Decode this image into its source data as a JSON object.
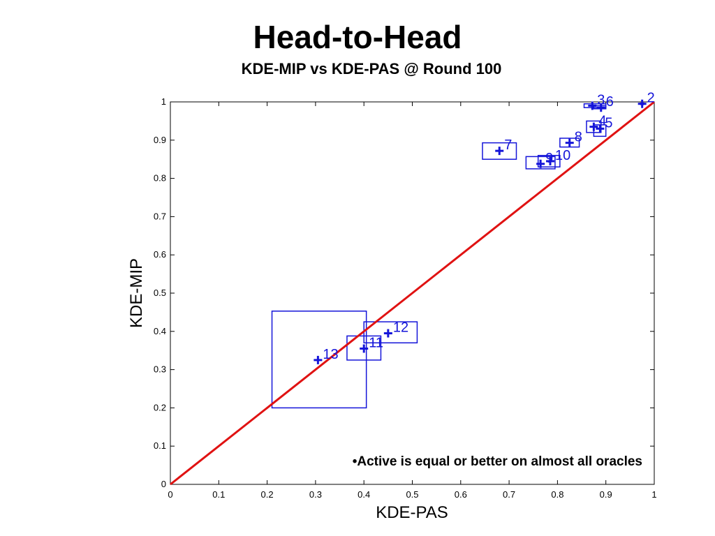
{
  "slide": {
    "title": "Head-to-Head",
    "subtitle": "KDE-MIP vs KDE-PAS @ Round 100",
    "note": "•Active is equal or better on almost all oracles"
  },
  "colors": {
    "series": "#1515d9",
    "diagonal": "#e01212",
    "axis": "#000000"
  },
  "chart_data": {
    "type": "scatter",
    "title": "",
    "xlabel": "KDE-PAS",
    "ylabel": "KDE-MIP",
    "xlim": [
      0,
      1
    ],
    "ylim": [
      0,
      1
    ],
    "xticks": [
      "0",
      "0.1",
      "0.2",
      "0.3",
      "0.4",
      "0.5",
      "0.6",
      "0.7",
      "0.8",
      "0.9",
      "1"
    ],
    "yticks": [
      "0",
      "0.1",
      "0.2",
      "0.3",
      "0.4",
      "0.5",
      "0.6",
      "0.7",
      "0.8",
      "0.9",
      "1"
    ],
    "grid": false,
    "reference_line": {
      "from": [
        0,
        0
      ],
      "to": [
        1,
        1
      ]
    },
    "points": [
      {
        "label": "2",
        "x": 0.975,
        "y": 0.995,
        "box": {
          "x": [
            0.972,
            0.978
          ],
          "y": [
            0.993,
            0.997
          ]
        }
      },
      {
        "label": "3",
        "x": 0.872,
        "y": 0.99,
        "box": {
          "x": [
            0.855,
            0.9
          ],
          "y": [
            0.985,
            0.995
          ]
        }
      },
      {
        "label": "6",
        "x": 0.89,
        "y": 0.985,
        "box": {
          "x": [
            0.875,
            0.9
          ],
          "y": [
            0.982,
            0.99
          ]
        }
      },
      {
        "label": "4",
        "x": 0.875,
        "y": 0.935,
        "box": {
          "x": [
            0.86,
            0.89
          ],
          "y": [
            0.92,
            0.95
          ]
        }
      },
      {
        "label": "5",
        "x": 0.888,
        "y": 0.93,
        "box": {
          "x": [
            0.875,
            0.9
          ],
          "y": [
            0.91,
            0.94
          ]
        }
      },
      {
        "label": "8",
        "x": 0.825,
        "y": 0.893,
        "box": {
          "x": [
            0.805,
            0.845
          ],
          "y": [
            0.882,
            0.905
          ]
        }
      },
      {
        "label": "7",
        "x": 0.68,
        "y": 0.872,
        "box": {
          "x": [
            0.645,
            0.715
          ],
          "y": [
            0.85,
            0.893
          ]
        }
      },
      {
        "label": "9",
        "x": 0.765,
        "y": 0.838,
        "box": {
          "x": [
            0.735,
            0.795
          ],
          "y": [
            0.825,
            0.857
          ]
        }
      },
      {
        "label": "10",
        "x": 0.785,
        "y": 0.845,
        "box": {
          "x": [
            0.76,
            0.805
          ],
          "y": [
            0.83,
            0.86
          ]
        }
      },
      {
        "label": "12",
        "x": 0.45,
        "y": 0.395,
        "box": {
          "x": [
            0.4,
            0.51
          ],
          "y": [
            0.37,
            0.425
          ]
        }
      },
      {
        "label": "11",
        "x": 0.4,
        "y": 0.355,
        "box": {
          "x": [
            0.365,
            0.435
          ],
          "y": [
            0.325,
            0.388
          ]
        }
      },
      {
        "label": "13",
        "x": 0.305,
        "y": 0.325,
        "box": {
          "x": [
            0.21,
            0.405
          ],
          "y": [
            0.2,
            0.453
          ]
        }
      }
    ]
  }
}
